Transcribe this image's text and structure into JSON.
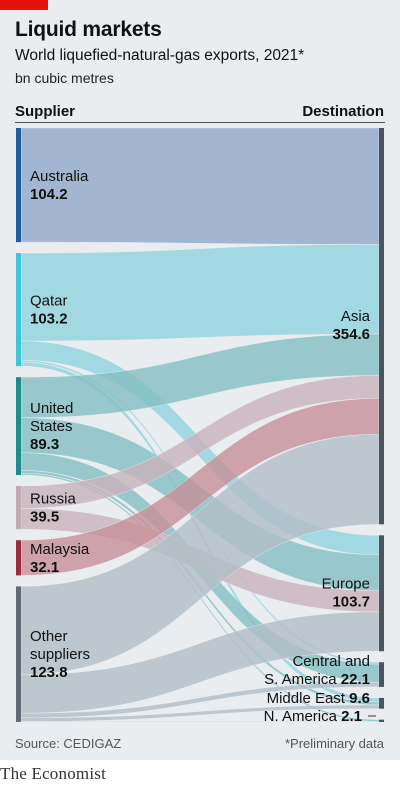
{
  "header": {
    "title": "Liquid markets",
    "subtitle": "World liquefied-natural-gas exports, 2021*",
    "unit": "bn cubic metres",
    "left_column": "Supplier",
    "right_column": "Destination",
    "accent_color": "#e3120b"
  },
  "footer": {
    "source": "Source: CEDIGAZ",
    "note": "*Preliminary data",
    "logo": "The Economist"
  },
  "chart_data": {
    "type": "sankey",
    "unit": "bn cubic metres",
    "sources": [
      {
        "id": "australia",
        "lines": [
          "Australia"
        ],
        "value": 104.2,
        "value_label": "104.2",
        "color": "#1f5f9e",
        "flow_color": "#92a9c9"
      },
      {
        "id": "qatar",
        "lines": [
          "Qatar"
        ],
        "value": 103.2,
        "value_label": "103.2",
        "color": "#3ec6d6",
        "flow_color": "#93d3de"
      },
      {
        "id": "us",
        "lines": [
          "United",
          "States"
        ],
        "value": 89.3,
        "value_label": "89.3",
        "color": "#1c8d8d",
        "flow_color": "#86bfc2"
      },
      {
        "id": "russia",
        "lines": [
          "Russia"
        ],
        "value": 39.5,
        "value_label": "39.5",
        "color": "#c3aab2",
        "flow_color": "#c9b3bb"
      },
      {
        "id": "malaysia",
        "lines": [
          "Malaysia"
        ],
        "value": 32.1,
        "value_label": "32.1",
        "color": "#9c2c3c",
        "flow_color": "#c7919a"
      },
      {
        "id": "other",
        "lines": [
          "Other",
          "suppliers"
        ],
        "value": 123.8,
        "value_label": "123.8",
        "color": "#5f6b77",
        "flow_color": "#b2bec7"
      }
    ],
    "targets": [
      {
        "id": "asia",
        "lines": [
          "Asia"
        ],
        "value": 354.6,
        "value_label": "354.6"
      },
      {
        "id": "europe",
        "lines": [
          "Europe"
        ],
        "value": 103.7,
        "value_label": "103.7"
      },
      {
        "id": "csam",
        "lines": [
          "Central and",
          "S. America"
        ],
        "value": 22.1,
        "value_label": "22.1"
      },
      {
        "id": "me",
        "lines": [
          "Middle East"
        ],
        "value": 9.6,
        "value_label": "9.6"
      },
      {
        "id": "nam",
        "lines": [
          "N. America"
        ],
        "value": 2.1,
        "value_label": "2.1"
      }
    ],
    "flows": [
      {
        "source": "australia",
        "target": "asia",
        "value": 104.2
      },
      {
        "source": "qatar",
        "target": "asia",
        "value": 80.2
      },
      {
        "source": "qatar",
        "target": "europe",
        "value": 17.5
      },
      {
        "source": "qatar",
        "target": "csam",
        "value": 1.8
      },
      {
        "source": "qatar",
        "target": "me",
        "value": 3.7
      },
      {
        "source": "us",
        "target": "asia",
        "value": 37.0
      },
      {
        "source": "us",
        "target": "europe",
        "value": 32.0
      },
      {
        "source": "us",
        "target": "csam",
        "value": 16.1
      },
      {
        "source": "us",
        "target": "me",
        "value": 2.6
      },
      {
        "source": "us",
        "target": "nam",
        "value": 1.6
      },
      {
        "source": "russia",
        "target": "asia",
        "value": 20.5
      },
      {
        "source": "russia",
        "target": "europe",
        "value": 19.0
      },
      {
        "source": "malaysia",
        "target": "asia",
        "value": 32.1
      },
      {
        "source": "other",
        "target": "asia",
        "value": 80.6
      },
      {
        "source": "other",
        "target": "europe",
        "value": 35.2
      },
      {
        "source": "other",
        "target": "csam",
        "value": 4.2
      },
      {
        "source": "other",
        "target": "me",
        "value": 3.3
      },
      {
        "source": "other",
        "target": "nam",
        "value": 0.5
      }
    ]
  }
}
